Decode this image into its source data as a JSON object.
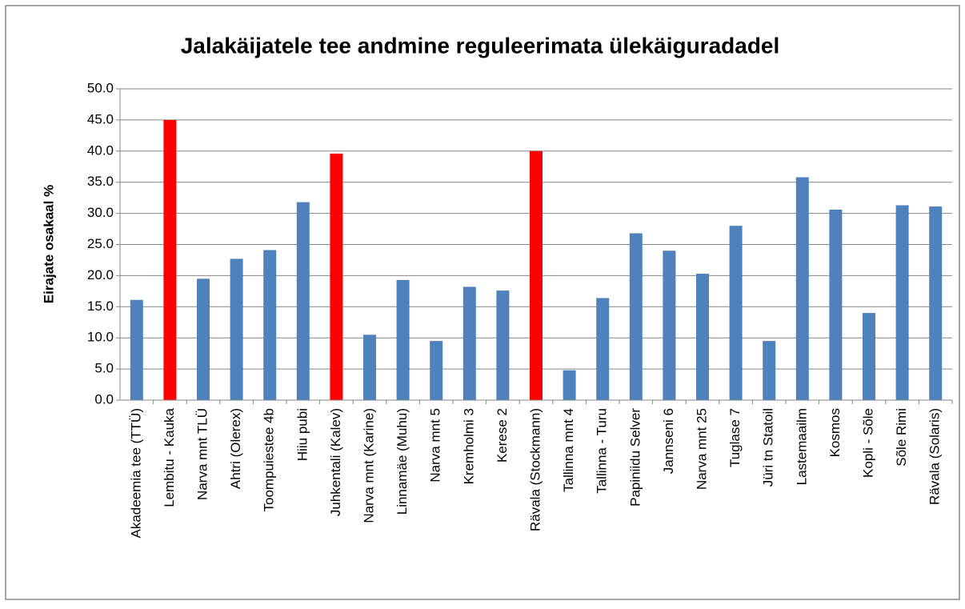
{
  "chart_data": {
    "type": "bar",
    "title": "Jalakäijatele tee andmine reguleerimata ülekäiguradadel",
    "y_label": "Eirajate osakaal %",
    "categories": [
      "Akadeemia tee (TTÜ)",
      "Lembitu - Kauka",
      "Narva mnt TLÜ",
      "Ahtri (Olerex)",
      "Toompuiestee 4b",
      "Hiiu pubi",
      "Juhkentali (Kalev)",
      "Narva mnt (Karine)",
      "Linnamäe (Muhu)",
      "Narva mnt 5",
      "Kremholmi 3",
      "Kerese 2",
      "Rävala (Stockmann)",
      "Tallinna mnt 4",
      "Tallinna - Turu",
      "Papiniidu Selver",
      "Jannseni 6",
      "Narva mnt 25",
      "Tuglase 7",
      "Jüri tn Statoil",
      "Lastemaailm",
      "Kosmos",
      "Kopli - Sõle",
      "Sõle Rimi",
      "Rävala (Solaris)"
    ],
    "values": [
      16.1,
      45.0,
      19.5,
      22.7,
      24.1,
      31.8,
      39.6,
      10.5,
      19.3,
      9.5,
      18.2,
      17.6,
      40.0,
      4.8,
      16.4,
      26.8,
      24.0,
      20.3,
      28.0,
      9.5,
      35.8,
      30.6,
      14.0,
      31.3,
      31.1
    ],
    "colors": [
      "#4f81bd",
      "#ff0000",
      "#4f81bd",
      "#4f81bd",
      "#4f81bd",
      "#4f81bd",
      "#ff0000",
      "#4f81bd",
      "#4f81bd",
      "#4f81bd",
      "#4f81bd",
      "#4f81bd",
      "#ff0000",
      "#4f81bd",
      "#4f81bd",
      "#4f81bd",
      "#4f81bd",
      "#4f81bd",
      "#4f81bd",
      "#4f81bd",
      "#4f81bd",
      "#4f81bd",
      "#4f81bd",
      "#4f81bd",
      "#4f81bd"
    ],
    "ylim": [
      0,
      50
    ],
    "yticks": [
      {
        "value": 0,
        "label": "0.0"
      },
      {
        "value": 5,
        "label": "5.0"
      },
      {
        "value": 10,
        "label": "10.0"
      },
      {
        "value": 15,
        "label": "15.0"
      },
      {
        "value": 20,
        "label": "20.0"
      },
      {
        "value": 25,
        "label": "25.0"
      },
      {
        "value": 30,
        "label": "30.0"
      },
      {
        "value": 35,
        "label": "35.0"
      },
      {
        "value": 40,
        "label": "40.0"
      },
      {
        "value": 45,
        "label": "45.0"
      },
      {
        "value": 50,
        "label": "50.0"
      }
    ],
    "grid": true
  }
}
